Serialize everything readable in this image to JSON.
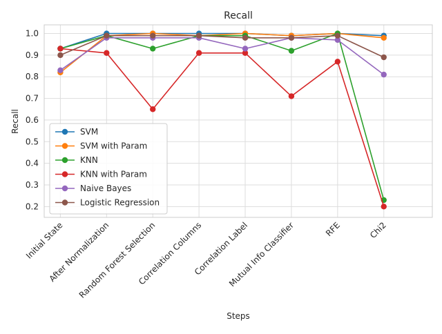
{
  "chart_data": {
    "type": "line",
    "title": "Recall",
    "xlabel": "Steps",
    "ylabel": "Recall",
    "ylim": [
      0.15,
      1.04
    ],
    "yticks": [
      "0.2",
      "0.3",
      "0.4",
      "0.5",
      "0.6",
      "0.7",
      "0.8",
      "0.9",
      "1.0"
    ],
    "grid": true,
    "legend_position": "lower-left",
    "categories": [
      "Initial State",
      "After Normalization",
      "Random Forest Selection",
      "Correlation Columns",
      "Correlation Label",
      "Mutual Info Classifier",
      "RFE",
      "Chi2"
    ],
    "series": [
      {
        "name": "SVM",
        "color": "#1f77b4",
        "values": [
          0.93,
          1.0,
          1.0,
          1.0,
          1.0,
          0.99,
          1.0,
          0.99
        ]
      },
      {
        "name": "SVM with Param",
        "color": "#ff7f0e",
        "values": [
          0.82,
          0.99,
          1.0,
          0.99,
          1.0,
          0.99,
          1.0,
          0.98
        ]
      },
      {
        "name": "KNN",
        "color": "#2ca02c",
        "values": [
          0.93,
          0.99,
          0.93,
          0.99,
          0.99,
          0.92,
          1.0,
          0.23
        ]
      },
      {
        "name": "KNN with Param",
        "color": "#d62728",
        "values": [
          0.93,
          0.91,
          0.65,
          0.91,
          0.91,
          0.71,
          0.87,
          0.2
        ]
      },
      {
        "name": "Naive Bayes",
        "color": "#9467bd",
        "values": [
          0.83,
          0.98,
          0.98,
          0.98,
          0.93,
          0.98,
          0.97,
          0.81
        ]
      },
      {
        "name": "Logistic Regression",
        "color": "#8c564b",
        "values": [
          0.9,
          0.99,
          0.99,
          0.99,
          0.98,
          0.98,
          0.99,
          0.89
        ]
      }
    ]
  }
}
